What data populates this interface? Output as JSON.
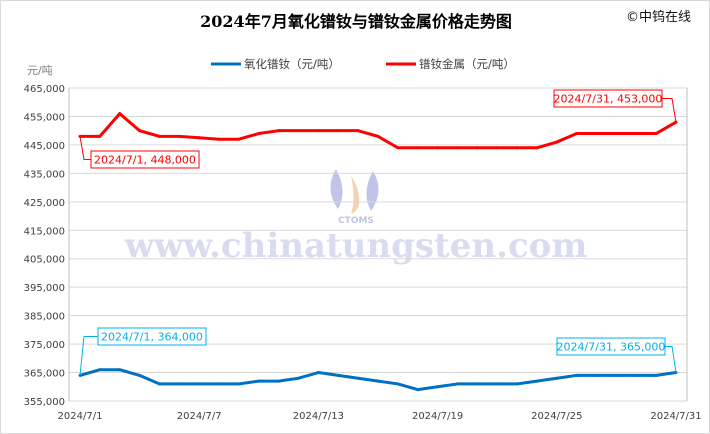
{
  "chart_data": {
    "type": "line",
    "title": "2024年7月氧化镨钕与镨钕金属价格走势图",
    "copyright": "©中钨在线",
    "watermark": "www.chinatungsten.com",
    "watermark_logo": "CTOMS",
    "ylabel": "元/吨",
    "ylim": [
      355000,
      465000
    ],
    "ytick_step": 10000,
    "yticks": [
      "355,000",
      "365,000",
      "375,000",
      "385,000",
      "395,000",
      "405,000",
      "415,000",
      "425,000",
      "435,000",
      "445,000",
      "455,000",
      "465,000"
    ],
    "xticks": [
      "2024/7/1",
      "2024/7/7",
      "2024/7/13",
      "2024/7/19",
      "2024/7/25",
      "2024/7/31"
    ],
    "x": [
      "2024/7/1",
      "2024/7/2",
      "2024/7/3",
      "2024/7/4",
      "2024/7/5",
      "2024/7/6",
      "2024/7/7",
      "2024/7/8",
      "2024/7/9",
      "2024/7/10",
      "2024/7/11",
      "2024/7/12",
      "2024/7/13",
      "2024/7/14",
      "2024/7/15",
      "2024/7/16",
      "2024/7/17",
      "2024/7/18",
      "2024/7/19",
      "2024/7/20",
      "2024/7/21",
      "2024/7/22",
      "2024/7/23",
      "2024/7/24",
      "2024/7/25",
      "2024/7/26",
      "2024/7/27",
      "2024/7/28",
      "2024/7/29",
      "2024/7/30",
      "2024/7/31"
    ],
    "grid": true,
    "legend_position": "top",
    "series": [
      {
        "name": "氧化镨钕（元/吨）",
        "color": "#0070c0",
        "values": [
          364000,
          366000,
          366000,
          364000,
          361000,
          361000,
          361000,
          361000,
          361000,
          362000,
          362000,
          363000,
          365000,
          364000,
          363000,
          362000,
          361000,
          359000,
          360000,
          361000,
          361000,
          361000,
          361000,
          362000,
          363000,
          364000,
          364000,
          364000,
          364000,
          364000,
          365000
        ],
        "annotations": [
          {
            "text": "2024/7/1, 364,000",
            "color": "#00b0f0"
          },
          {
            "text": "2024/7/31, 365,000",
            "color": "#00b0f0"
          }
        ]
      },
      {
        "name": "镨钕金属（元/吨）",
        "color": "#ff0000",
        "values": [
          448000,
          448000,
          456000,
          450000,
          448000,
          448000,
          447500,
          447000,
          447000,
          449000,
          450000,
          450000,
          450000,
          450000,
          450000,
          448000,
          444000,
          444000,
          444000,
          444000,
          444000,
          444000,
          444000,
          444000,
          446000,
          449000,
          449000,
          449000,
          449000,
          449000,
          453000
        ],
        "annotations": [
          {
            "text": "2024/7/1, 448,000",
            "color": "#ff0000"
          },
          {
            "text": "2024/7/31, 453,000",
            "color": "#ff0000"
          }
        ]
      }
    ]
  }
}
